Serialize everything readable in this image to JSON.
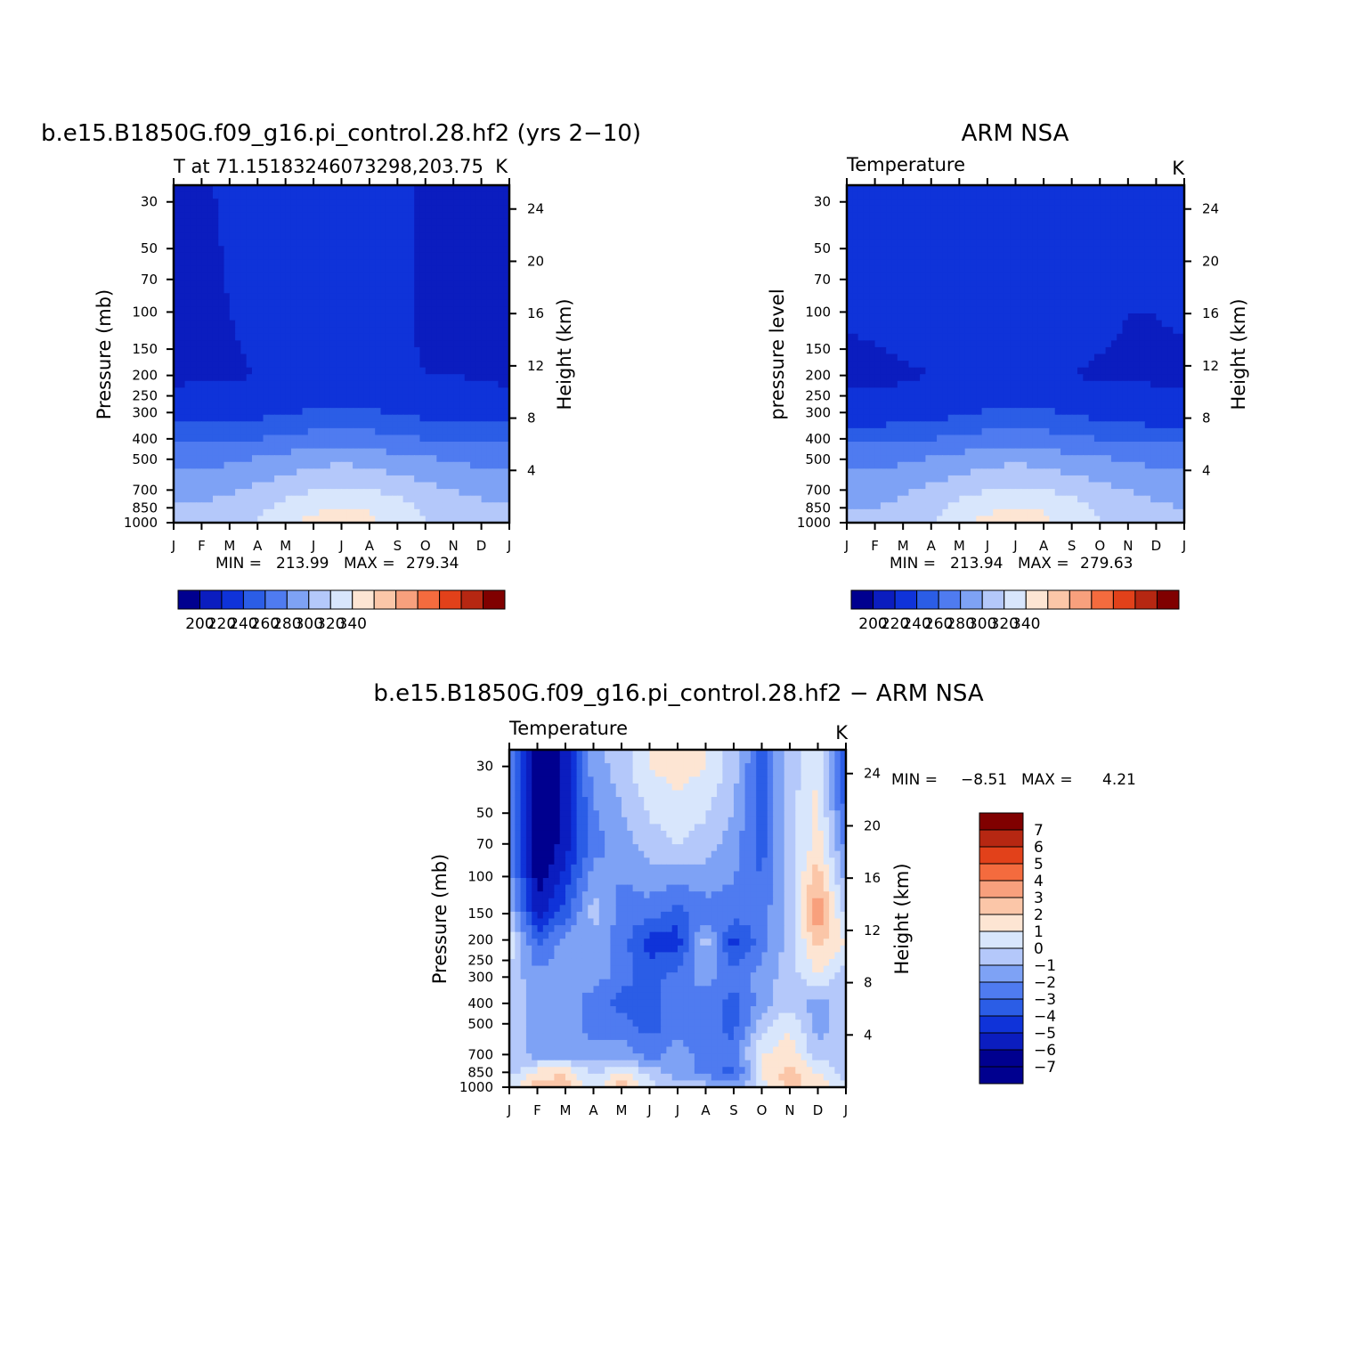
{
  "chart_data": [
    {
      "type": "heatmap",
      "id": "model",
      "title": "b.e15.B1850G.f09_g16.pi_control.28.hf2 (yrs 2−10)",
      "subtitle_left": "T at 71.15183246073298,203.75",
      "subtitle_right": "K",
      "ylabel": "Pressure (mb)",
      "ylabel_right": "Height (km)",
      "x_ticklabels": [
        "J",
        "F",
        "M",
        "A",
        "M",
        "J",
        "J",
        "A",
        "S",
        "O",
        "N",
        "D",
        "J"
      ],
      "y_ticklabels": [
        "30",
        "50",
        "70",
        "100",
        "150",
        "200",
        "250",
        "300",
        "400",
        "500",
        "700",
        "850",
        "1000"
      ],
      "y_right_ticklabels": [
        "24",
        "20",
        "16",
        "12",
        "8",
        "4"
      ],
      "ylim": [
        1000,
        25
      ],
      "stats": {
        "min_label": "MIN =",
        "min": "213.99",
        "max_label": "MAX =",
        "max": "279.34"
      },
      "colorbar": {
        "orientation": "horizontal",
        "labels": [
          "200",
          "220",
          "240",
          "260",
          "280",
          "300",
          "320",
          "340"
        ]
      },
      "levels_upper_K": [
        {
          "pressure_hPa": 30,
          "values": [
            212,
            214,
            216,
            218,
            219,
            219,
            222,
            218,
            216,
            214,
            213,
            213,
            212
          ]
        },
        {
          "pressure_hPa": 100,
          "values": [
            212,
            213,
            215,
            217,
            218,
            219,
            219,
            218,
            216,
            214,
            213,
            213,
            212
          ]
        },
        {
          "pressure_hPa": 200,
          "values": [
            213,
            214,
            214,
            215,
            216,
            216,
            216,
            216,
            216,
            215,
            215,
            214,
            213
          ]
        },
        {
          "pressure_hPa": 300,
          "values": [
            220,
            220,
            221,
            222,
            224,
            226,
            227,
            226,
            224,
            222,
            221,
            220,
            220
          ]
        },
        {
          "pressure_hPa": 400,
          "values": [
            232,
            232,
            233,
            235,
            237,
            239,
            240,
            239,
            237,
            235,
            233,
            232,
            232
          ]
        },
        {
          "pressure_hPa": 500,
          "values": [
            242,
            242,
            243,
            246,
            249,
            251,
            253,
            251,
            248,
            246,
            244,
            242,
            242
          ]
        },
        {
          "pressure_hPa": 700,
          "values": [
            252,
            252,
            254,
            257,
            261,
            265,
            267,
            265,
            262,
            258,
            255,
            253,
            252
          ]
        },
        {
          "pressure_hPa": 850,
          "values": [
            256,
            256,
            258,
            262,
            268,
            273,
            276,
            274,
            269,
            263,
            259,
            257,
            256
          ]
        },
        {
          "pressure_hPa": 1000,
          "values": [
            258,
            258,
            260,
            266,
            273,
            278,
            279,
            277,
            272,
            266,
            261,
            259,
            258
          ]
        }
      ]
    },
    {
      "type": "heatmap",
      "id": "obs",
      "title": "ARM NSA",
      "subtitle_left": "Temperature",
      "subtitle_right": "K",
      "ylabel": "pressure level",
      "ylabel_right": "Height (km)",
      "x_ticklabels": [
        "J",
        "F",
        "M",
        "A",
        "M",
        "J",
        "J",
        "A",
        "S",
        "O",
        "N",
        "D",
        "J"
      ],
      "y_ticklabels": [
        "30",
        "50",
        "70",
        "100",
        "150",
        "200",
        "250",
        "300",
        "400",
        "500",
        "700",
        "850",
        "1000"
      ],
      "y_right_ticklabels": [
        "24",
        "20",
        "16",
        "12",
        "8",
        "4"
      ],
      "ylim": [
        1000,
        25
      ],
      "stats": {
        "min_label": "MIN =",
        "min": "213.94",
        "max_label": "MAX =",
        "max": "279.63"
      },
      "colorbar": {
        "orientation": "horizontal",
        "labels": [
          "200",
          "220",
          "240",
          "260",
          "280",
          "300",
          "320",
          "340"
        ]
      },
      "levels_upper_K": [
        {
          "pressure_hPa": 30,
          "values": [
            217,
            218,
            219,
            219,
            219,
            219,
            221,
            219,
            218,
            217,
            216,
            215,
            217
          ]
        },
        {
          "pressure_hPa": 100,
          "values": [
            216,
            217,
            218,
            219,
            219,
            219,
            219,
            219,
            218,
            217,
            215,
            215,
            216
          ]
        },
        {
          "pressure_hPa": 200,
          "values": [
            213,
            213,
            214,
            215,
            216,
            216,
            216,
            216,
            215,
            214,
            214,
            214,
            213
          ]
        },
        {
          "pressure_hPa": 300,
          "values": [
            218,
            218,
            219,
            221,
            223,
            226,
            227,
            226,
            224,
            221,
            219,
            218,
            218
          ]
        },
        {
          "pressure_hPa": 400,
          "values": [
            232,
            232,
            233,
            235,
            237,
            239,
            240,
            239,
            237,
            235,
            233,
            232,
            232
          ]
        },
        {
          "pressure_hPa": 500,
          "values": [
            242,
            242,
            243,
            246,
            249,
            251,
            253,
            251,
            248,
            246,
            244,
            242,
            242
          ]
        },
        {
          "pressure_hPa": 700,
          "values": [
            252,
            252,
            254,
            257,
            261,
            265,
            267,
            265,
            262,
            258,
            255,
            253,
            252
          ]
        },
        {
          "pressure_hPa": 850,
          "values": [
            255,
            255,
            257,
            262,
            268,
            273,
            276,
            274,
            269,
            263,
            259,
            256,
            255
          ]
        },
        {
          "pressure_hPa": 1000,
          "values": [
            257,
            257,
            259,
            265,
            272,
            278,
            280,
            277,
            271,
            265,
            260,
            258,
            257
          ]
        }
      ]
    },
    {
      "type": "heatmap",
      "id": "diff",
      "title": "b.e15.B1850G.f09_g16.pi_control.28.hf2 − ARM NSA",
      "subtitle_left": "Temperature",
      "subtitle_right": "K",
      "ylabel": "Pressure (mb)",
      "ylabel_right": "Height (km)",
      "x_ticklabels": [
        "J",
        "F",
        "M",
        "A",
        "M",
        "J",
        "J",
        "A",
        "S",
        "O",
        "N",
        "D",
        "J"
      ],
      "y_ticklabels": [
        "30",
        "50",
        "70",
        "100",
        "150",
        "200",
        "250",
        "300",
        "400",
        "500",
        "700",
        "850",
        "1000"
      ],
      "y_right_ticklabels": [
        "24",
        "20",
        "16",
        "12",
        "8",
        "4"
      ],
      "ylim": [
        1000,
        25
      ],
      "stats": {
        "min_label": "MIN =",
        "min": "−8.51",
        "max_label": "MAX =",
        "max": "4.21"
      },
      "colorbar": {
        "orientation": "vertical",
        "labels": [
          "7",
          "6",
          "5",
          "4",
          "3",
          "2",
          "1",
          "0",
          "−1",
          "−2",
          "−3",
          "−4",
          "−5",
          "−6",
          "−7"
        ]
      },
      "levels_K": [
        {
          "pressure_hPa": 30,
          "values": [
            -3,
            -8,
            -6,
            -2,
            -1,
            0.5,
            1,
            0.5,
            -1,
            -4,
            -1,
            0.5,
            -5
          ]
        },
        {
          "pressure_hPa": 70,
          "values": [
            -3,
            -8,
            -6,
            -3,
            -2,
            -1,
            -0.5,
            -1,
            -2,
            -4,
            -1,
            1,
            -3
          ]
        },
        {
          "pressure_hPa": 150,
          "values": [
            -1,
            -6,
            -4,
            -1,
            -3,
            -3,
            -4,
            -3,
            -3,
            -3,
            -1,
            3.5,
            -1
          ]
        },
        {
          "pressure_hPa": 200,
          "values": [
            0.5,
            -4,
            -2,
            -2,
            -3,
            -5,
            -5,
            -1,
            -5,
            -3,
            -1,
            2,
            0.5
          ]
        },
        {
          "pressure_hPa": 300,
          "values": [
            -1,
            -2,
            -2,
            -2,
            -3,
            -4,
            -3,
            -2,
            -3,
            -2,
            -1,
            0.5,
            -1
          ]
        },
        {
          "pressure_hPa": 400,
          "values": [
            -1,
            -2,
            -2,
            -3,
            -4,
            -4,
            -3,
            -3,
            -4,
            -2,
            -1,
            -2,
            -1
          ]
        },
        {
          "pressure_hPa": 500,
          "values": [
            -1,
            -2,
            -2,
            -3,
            -3,
            -4,
            -3,
            -3,
            -4,
            -1,
            0.5,
            -2,
            -1
          ]
        },
        {
          "pressure_hPa": 700,
          "values": [
            -1,
            -2,
            -2,
            -2,
            -2,
            -3,
            -2,
            -3,
            -3,
            0.5,
            1,
            -1,
            -1
          ]
        },
        {
          "pressure_hPa": 850,
          "values": [
            -1,
            1,
            1.5,
            -1,
            1,
            -1,
            -2,
            -3,
            -4,
            0.5,
            2,
            0.5,
            -1
          ]
        },
        {
          "pressure_hPa": 1000,
          "values": [
            0,
            2,
            2,
            0,
            2,
            0,
            -1,
            -1,
            -2,
            0,
            2,
            1,
            0
          ]
        }
      ]
    }
  ],
  "palettes": {
    "absolute": [
      "#00008f",
      "#0b1dbf",
      "#0f33d9",
      "#2b5de6",
      "#4f7bf0",
      "#7ea2f5",
      "#b4c8fa",
      "#d8e6fc",
      "#fde5d3",
      "#fbc6a8",
      "#f8a07d",
      "#f46b3e",
      "#e2411a",
      "#b62712",
      "#800000"
    ],
    "absolute_fill_range": [
      195,
      345
    ],
    "difference": [
      "#00008f",
      "#0b1dbf",
      "#0f33d9",
      "#2b5de6",
      "#4f7bf0",
      "#7ea2f5",
      "#b4c8fa",
      "#d8e6fc",
      "#fde5d3",
      "#fbc6a8",
      "#f8a07d",
      "#f46b3e",
      "#e2411a",
      "#b62712",
      "#800000"
    ],
    "difference_fill_range": [
      -7.5,
      7.5
    ]
  }
}
